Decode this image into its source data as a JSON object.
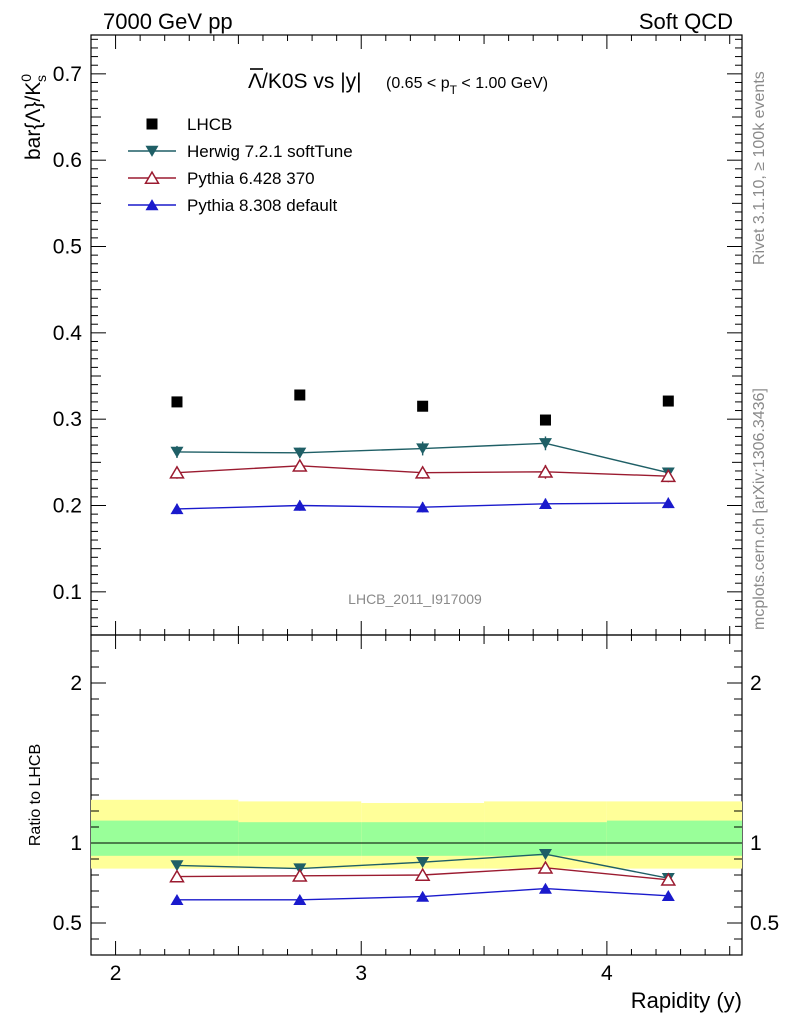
{
  "header": {
    "left": "7000 GeV pp",
    "right": "Soft QCD"
  },
  "plot_title": {
    "bar_symbol": "Λ",
    "main": "/K0S vs |y|",
    "cut_prefix": "(0.65 < p",
    "cut_sub": "T",
    "cut_suffix": " < 1.00 GeV)"
  },
  "ylabel_main": {
    "base": "bar{Λ}/K",
    "sup": "0",
    "sub": "s"
  },
  "ylabel_ratio": "Ratio to LHCB",
  "xlabel": "Rapidity (y)",
  "watermark": "LHCB_2011_I917009",
  "side_text_top": "Rivet 3.1.10, ≥ 100k events",
  "side_text_bottom": "mcplots.cern.ch [arXiv:1306.3436]",
  "colors": {
    "data": "#000000",
    "herwig": "#1f5f66",
    "pythia6": "#9b1b30",
    "pythia8": "#1a1acc",
    "band_outer": "#ffff99",
    "band_inner": "#99ff99"
  },
  "chart_data": {
    "type": "line",
    "x": [
      2.25,
      2.75,
      3.25,
      3.75,
      4.25
    ],
    "xlim": [
      1.9,
      4.55
    ],
    "main_ylim": [
      0.05,
      0.745
    ],
    "ratio_ylim": [
      0.3,
      2.3
    ],
    "x_ticks": [
      "2",
      "3",
      "4"
    ],
    "main_y_ticks": [
      "0.1",
      "0.2",
      "0.3",
      "0.4",
      "0.5",
      "0.6",
      "0.7"
    ],
    "ratio_y_ticks": [
      "0.5",
      "1",
      "2"
    ],
    "legend_position": "top-left",
    "series": [
      {
        "name": "LHCB",
        "marker": "square",
        "color": "#000000",
        "values": [
          0.32,
          0.328,
          0.315,
          0.299,
          0.321
        ],
        "errors": [
          0.0,
          0.0,
          0.0,
          0.0,
          0.0
        ]
      },
      {
        "name": "Herwig 7.2.1 softTune",
        "marker": "triangle-down",
        "color": "#1f5f66",
        "values": [
          0.262,
          0.261,
          0.266,
          0.272,
          0.238
        ],
        "errors": [
          0.007,
          0.006,
          0.008,
          0.008,
          0.006
        ]
      },
      {
        "name": "Pythia 6.428 370",
        "marker": "triangle-open",
        "color": "#9b1b30",
        "values": [
          0.238,
          0.246,
          0.238,
          0.239,
          0.234
        ],
        "errors": [
          0.007,
          0.006,
          0.007,
          0.008,
          0.007
        ]
      },
      {
        "name": "Pythia 8.308 default",
        "marker": "triangle-up",
        "color": "#1a1acc",
        "values": [
          0.196,
          0.2,
          0.198,
          0.202,
          0.203
        ],
        "errors": [
          0.006,
          0.006,
          0.006,
          0.006,
          0.006
        ]
      }
    ],
    "ratio": {
      "band_x_edges": [
        1.9,
        2.5,
        3.0,
        3.5,
        4.0,
        4.55
      ],
      "band_outer": [
        [
          0.84,
          1.27
        ],
        [
          0.84,
          1.26
        ],
        [
          0.84,
          1.25
        ],
        [
          0.84,
          1.26
        ],
        [
          0.84,
          1.26
        ]
      ],
      "band_inner": [
        [
          0.92,
          1.14
        ],
        [
          0.92,
          1.13
        ],
        [
          0.92,
          1.13
        ],
        [
          0.92,
          1.13
        ],
        [
          0.92,
          1.14
        ]
      ],
      "series": [
        {
          "name": "Herwig 7.2.1 softTune",
          "values": [
            0.86,
            0.84,
            0.88,
            0.93,
            0.78
          ],
          "errors": [
            0.02,
            0.02,
            0.025,
            0.025,
            0.02
          ]
        },
        {
          "name": "Pythia 6.428 370",
          "values": [
            0.79,
            0.795,
            0.8,
            0.845,
            0.77
          ],
          "errors": [
            0.02,
            0.02,
            0.02,
            0.025,
            0.02
          ]
        },
        {
          "name": "Pythia 8.308 default",
          "values": [
            0.645,
            0.645,
            0.665,
            0.715,
            0.67
          ],
          "errors": [
            0.02,
            0.02,
            0.02,
            0.02,
            0.02
          ]
        }
      ]
    }
  }
}
